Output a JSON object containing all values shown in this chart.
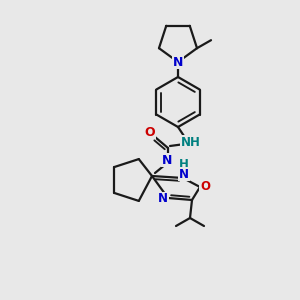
{
  "background_color": "#e8e8e8",
  "bond_color": "#1a1a1a",
  "N_color": "#0000cc",
  "O_color": "#cc0000",
  "NH_color": "#008080",
  "line_width": 1.6,
  "figsize": [
    3.0,
    3.0
  ],
  "dpi": 100,
  "xlim": [
    0,
    300
  ],
  "ylim": [
    0,
    300
  ]
}
